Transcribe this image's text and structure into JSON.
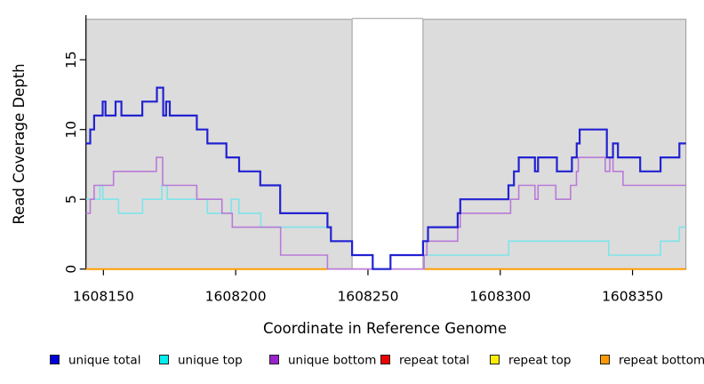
{
  "chart_data": {
    "type": "line",
    "subtype": "step",
    "title": "",
    "xlabel": "Coordinate in Reference Genome",
    "ylabel": "Read Coverage Depth",
    "xlim": [
      1608143.4,
      1608370.2
    ],
    "ylim": [
      0,
      18.2
    ],
    "x_ticks": [
      1608150,
      1608200,
      1608250,
      1608300,
      1608350
    ],
    "y_ticks": [
      0,
      5,
      10,
      15
    ],
    "grid": false,
    "background_shade": {
      "color": "#dcdcdc",
      "border_color": "#9a9a9a",
      "y_top": 17.9,
      "x_gap": [
        1608244.0,
        1608270.8
      ]
    },
    "legend_position": "bottom",
    "legend": [
      {
        "label": "unique total",
        "color": "#0000dd"
      },
      {
        "label": "unique top",
        "color": "#00eeee"
      },
      {
        "label": "unique bottom",
        "color": "#9922cc"
      },
      {
        "label": "repeat total",
        "color": "#ee0000"
      },
      {
        "label": "repeat top",
        "color": "#ffee00"
      },
      {
        "label": "repeat bottom",
        "color": "#ff9900"
      }
    ],
    "series": [
      {
        "name": "repeat total",
        "color": "#ee6088",
        "width": 1.6,
        "steps": [
          [
            1608234.7,
            0
          ]
        ],
        "xend": 1608251.8
      },
      {
        "name": "repeat top",
        "color": "#9cdcb4",
        "width": 1.6,
        "steps": [
          [
            1608258.5,
            0
          ]
        ],
        "xend": 1608270.8
      },
      {
        "name": "repeat bottom",
        "color": "#ff9d00",
        "width": 2,
        "steps": [
          [
            1608143.4,
            0
          ]
        ],
        "xend": 1608234.7
      },
      {
        "name": "repeat bottom",
        "color": "#ff9d00",
        "width": 2,
        "steps": [
          [
            1608271.3,
            0
          ]
        ],
        "xend": 1608370.2
      },
      {
        "name": "unique top",
        "color": "#7de4ea",
        "width": 1.6,
        "steps": [
          [
            1608143.4,
            5
          ],
          [
            1608148.7,
            6
          ],
          [
            1608149.8,
            5
          ],
          [
            1608155.7,
            4
          ],
          [
            1608164.8,
            5
          ],
          [
            1608172.1,
            6
          ],
          [
            1608174.1,
            5
          ],
          [
            1608189.3,
            4
          ],
          [
            1608198.3,
            5
          ],
          [
            1608201.2,
            4
          ],
          [
            1608209.5,
            3
          ],
          [
            1608236,
            2
          ],
          [
            1608244,
            1
          ],
          [
            1608251.8,
            0
          ],
          [
            1608258.5,
            1
          ],
          [
            1608303.2,
            2
          ],
          [
            1608341,
            1
          ],
          [
            1608360.6,
            2
          ],
          [
            1608367.7,
            3
          ]
        ],
        "xend": 1608370.2
      },
      {
        "name": "unique bottom",
        "color": "#b97ad8",
        "width": 1.6,
        "steps": [
          [
            1608143.4,
            4
          ],
          [
            1608145,
            5
          ],
          [
            1608146.5,
            6
          ],
          [
            1608153.8,
            7
          ],
          [
            1608170,
            8
          ],
          [
            1608172.4,
            6
          ],
          [
            1608185.3,
            5
          ],
          [
            1608194.8,
            4
          ],
          [
            1608198.7,
            3
          ],
          [
            1608217,
            1
          ],
          [
            1608234.7,
            0
          ],
          [
            1608271.2,
            1
          ],
          [
            1608272.3,
            2
          ],
          [
            1608283.9,
            3
          ],
          [
            1608284.9,
            4
          ],
          [
            1608303.9,
            5
          ],
          [
            1608307,
            6
          ],
          [
            1608313.1,
            5
          ],
          [
            1608314.3,
            6
          ],
          [
            1608321,
            5
          ],
          [
            1608326.6,
            6
          ],
          [
            1608328.8,
            7
          ],
          [
            1608329.5,
            8
          ],
          [
            1608339.7,
            7
          ],
          [
            1608341.4,
            8
          ],
          [
            1608342.6,
            7
          ],
          [
            1608346.4,
            6
          ]
        ],
        "xend": 1608370.2
      },
      {
        "name": "unique total",
        "color": "#2222d2",
        "width": 2.2,
        "steps": [
          [
            1608143.4,
            9
          ],
          [
            1608145,
            10
          ],
          [
            1608146.5,
            11
          ],
          [
            1608149.7,
            12
          ],
          [
            1608150.8,
            11
          ],
          [
            1608154.6,
            12
          ],
          [
            1608156.8,
            11
          ],
          [
            1608164.7,
            12
          ],
          [
            1608170.2,
            13
          ],
          [
            1608172.6,
            11
          ],
          [
            1608173.7,
            12
          ],
          [
            1608175.1,
            11
          ],
          [
            1608185.3,
            10
          ],
          [
            1608189.3,
            9
          ],
          [
            1608196.5,
            8
          ],
          [
            1608201.3,
            7
          ],
          [
            1608209.3,
            6
          ],
          [
            1608216.8,
            4
          ],
          [
            1608234.7,
            3
          ],
          [
            1608236,
            2
          ],
          [
            1608244,
            1
          ],
          [
            1608251.8,
            0
          ],
          [
            1608258.5,
            1
          ],
          [
            1608270.8,
            2
          ],
          [
            1608272.7,
            3
          ],
          [
            1608283.9,
            4
          ],
          [
            1608284.9,
            5
          ],
          [
            1608303.1,
            6
          ],
          [
            1608305.2,
            7
          ],
          [
            1608307,
            8
          ],
          [
            1608313.1,
            7
          ],
          [
            1608314.3,
            8
          ],
          [
            1608321.4,
            7
          ],
          [
            1608327.1,
            8
          ],
          [
            1608328.9,
            9
          ],
          [
            1608330,
            10
          ],
          [
            1608340.3,
            8
          ],
          [
            1608342.6,
            9
          ],
          [
            1608344.5,
            8
          ],
          [
            1608352.9,
            7
          ],
          [
            1608360.6,
            8
          ],
          [
            1608367.7,
            9
          ]
        ],
        "xend": 1608370.2
      }
    ]
  }
}
